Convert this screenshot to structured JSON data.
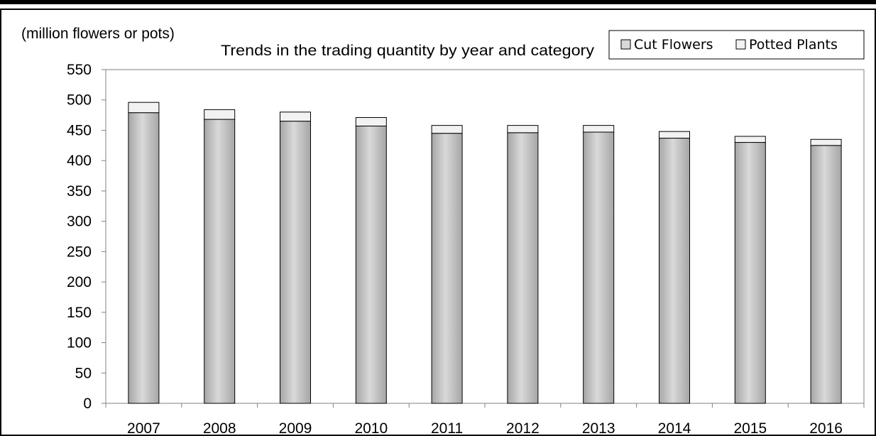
{
  "chart_data": {
    "type": "bar",
    "stacked": true,
    "title": "Trends in the trading quantity by year and category",
    "unit_label": "(million flowers or pots)",
    "xlabel": "",
    "ylabel": "",
    "categories": [
      "2007",
      "2008",
      "2009",
      "2010",
      "2011",
      "2012",
      "2013",
      "2014",
      "2015",
      "2016"
    ],
    "series": [
      {
        "name": "Cut Flowers",
        "values": [
          479,
          468,
          465,
          457,
          445,
          446,
          447,
          437,
          430,
          425
        ],
        "color": "#d9d9d9"
      },
      {
        "name": "Potted Plants",
        "values": [
          17,
          16,
          15,
          14,
          13,
          12,
          11,
          11,
          10,
          10
        ],
        "color": "#f2f2f2"
      }
    ],
    "ylim": [
      0,
      550
    ],
    "yticks": [
      "0",
      "50",
      "100",
      "150",
      "200",
      "250",
      "300",
      "350",
      "400",
      "450",
      "500",
      "550"
    ],
    "grid": false,
    "legend_position": "top-right",
    "bar_stroke_color": "#000000"
  }
}
